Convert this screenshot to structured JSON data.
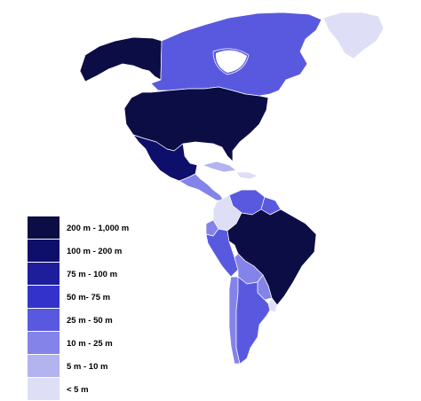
{
  "legend": [
    {
      "label": "200 m - 1,000 m",
      "color": "#0d0d45"
    },
    {
      "label": "100 m - 200 m",
      "color": "#0e0e6b"
    },
    {
      "label": "75 m - 100 m",
      "color": "#1e1e9c"
    },
    {
      "label": "50 m- 75 m",
      "color": "#3333cc"
    },
    {
      "label": "25 m - 50 m",
      "color": "#5959e0"
    },
    {
      "label": "10 m - 25 m",
      "color": "#8383ea"
    },
    {
      "label": "5 m - 10 m",
      "color": "#b3b3f0"
    },
    {
      "label": "< 5 m",
      "color": "#dedef7"
    }
  ],
  "regions": [
    {
      "name": "alaska",
      "color": "#0d0d45"
    },
    {
      "name": "canada",
      "color": "#5959e0"
    },
    {
      "name": "greenland",
      "color": "#dedef7"
    },
    {
      "name": "usa",
      "color": "#0d0d45"
    },
    {
      "name": "mexico",
      "color": "#0e0e6b"
    },
    {
      "name": "central-america",
      "color": "#8383ea"
    },
    {
      "name": "cuba",
      "color": "#b3b3f0"
    },
    {
      "name": "caribbean",
      "color": "#dedef7"
    },
    {
      "name": "venezuela",
      "color": "#5959e0"
    },
    {
      "name": "colombia",
      "color": "#5959e0"
    },
    {
      "name": "guianas",
      "color": "#dedef7"
    },
    {
      "name": "ecuador",
      "color": "#8383ea"
    },
    {
      "name": "peru",
      "color": "#5959e0"
    },
    {
      "name": "brazil",
      "color": "#0d0d45"
    },
    {
      "name": "bolivia",
      "color": "#8383ea"
    },
    {
      "name": "paraguay",
      "color": "#8383ea"
    },
    {
      "name": "chile",
      "color": "#8383ea"
    },
    {
      "name": "argentina",
      "color": "#5959e0"
    },
    {
      "name": "uruguay",
      "color": "#dedef7"
    }
  ]
}
